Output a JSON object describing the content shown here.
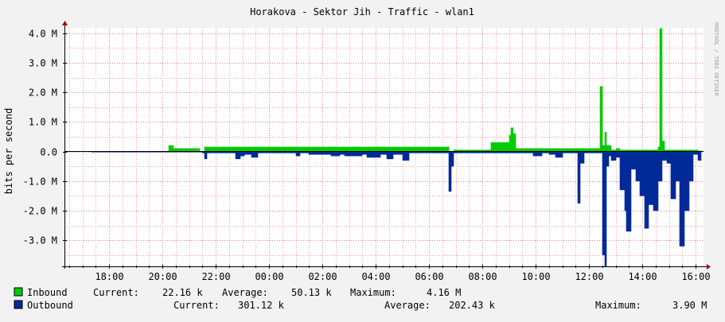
{
  "chart_data": {
    "type": "area",
    "title": "Horakova - Sektor Jih - Traffic - wlan1",
    "ylabel": "bits per second",
    "watermark": "RRDTOOL / TOBI OETIKER",
    "x_unit": "hour",
    "xlim": [
      16.4,
      16.1
    ],
    "ylim": [
      -3.9,
      4.25
    ],
    "y_ticks": [
      {
        "value": 4,
        "label": "4.0 M"
      },
      {
        "value": 3,
        "label": "3.0 M"
      },
      {
        "value": 2,
        "label": "2.0 M"
      },
      {
        "value": 1,
        "label": "1.0 M"
      },
      {
        "value": 0,
        "label": "0.0"
      },
      {
        "value": -1,
        "label": "-1.0 M"
      },
      {
        "value": -2,
        "label": "-2.0 M"
      },
      {
        "value": -3,
        "label": "-3.0 M"
      }
    ],
    "x_ticks": [
      "18:00",
      "20:00",
      "22:00",
      "00:00",
      "02:00",
      "04:00",
      "06:00",
      "08:00",
      "10:00",
      "12:00",
      "14:00",
      "16:00"
    ],
    "grid": true,
    "colors": {
      "inbound": "#00cc00",
      "outbound": "#002a97",
      "grid": "#ff9999",
      "axis": "#000000",
      "background": "#ffffff"
    },
    "series": [
      {
        "name": "Inbound",
        "color": "#00cc00",
        "x": [
          "20:05",
          "20:15",
          "20:25",
          "21:25",
          "21:35",
          "06:45",
          "06:55",
          "08:20",
          "08:30",
          "08:40",
          "09:00",
          "09:05",
          "09:10",
          "09:15",
          "12:20",
          "12:25",
          "12:30",
          "12:35",
          "12:40",
          "12:50",
          "13:00",
          "13:10",
          "13:20",
          "13:30",
          "13:40",
          "14:00",
          "14:20",
          "14:35",
          "14:40",
          "14:45",
          "14:50",
          "15:00",
          "15:20",
          "15:40",
          "15:55",
          "16:05"
        ],
        "values": [
          0.0,
          0.2,
          0.1,
          0.0,
          0.15,
          0.0,
          0.05,
          0.3,
          0.3,
          0.3,
          0.55,
          0.8,
          0.6,
          0.1,
          0.1,
          2.2,
          0.2,
          0.65,
          0.2,
          0.05,
          0.1,
          0.05,
          0.05,
          0.05,
          0.05,
          0.05,
          0.05,
          0.15,
          4.16,
          0.35,
          0.05,
          0.05,
          0.05,
          0.05,
          0.05,
          0.02
        ]
      },
      {
        "name": "Outbound",
        "color": "#002a97",
        "x": [
          "17:20",
          "17:30",
          "19:40",
          "21:30",
          "21:35",
          "21:40",
          "22:30",
          "22:45",
          "22:55",
          "23:05",
          "23:20",
          "23:35",
          "01:00",
          "01:10",
          "01:30",
          "01:50",
          "02:20",
          "02:40",
          "02:50",
          "03:30",
          "03:40",
          "04:10",
          "04:25",
          "04:40",
          "05:00",
          "05:15",
          "06:45",
          "06:50",
          "06:55",
          "09:55",
          "10:15",
          "10:30",
          "10:45",
          "11:00",
          "11:35",
          "11:40",
          "11:50",
          "12:30",
          "12:35",
          "12:40",
          "12:45",
          "12:50",
          "13:00",
          "13:10",
          "13:20",
          "13:25",
          "13:35",
          "13:45",
          "13:55",
          "14:05",
          "14:15",
          "14:25",
          "14:35",
          "14:45",
          "14:55",
          "15:05",
          "15:15",
          "15:25",
          "15:35",
          "15:45",
          "15:55",
          "16:05"
        ],
        "values": [
          -0.02,
          -0.02,
          -0.02,
          -0.05,
          -0.25,
          -0.05,
          -0.05,
          -0.25,
          -0.15,
          -0.1,
          -0.2,
          -0.05,
          -0.15,
          -0.05,
          -0.1,
          -0.1,
          -0.15,
          -0.1,
          -0.15,
          -0.1,
          -0.2,
          -0.1,
          -0.25,
          -0.1,
          -0.3,
          -0.05,
          -1.35,
          -0.5,
          -0.05,
          -0.15,
          -0.05,
          -0.1,
          -0.2,
          -0.05,
          -1.75,
          -0.4,
          -0.05,
          -3.5,
          -3.9,
          -0.5,
          -0.15,
          -0.3,
          -0.2,
          -1.3,
          -2.0,
          -2.7,
          -0.6,
          -1.0,
          -1.5,
          -2.6,
          -1.8,
          -2.0,
          -1.0,
          -0.3,
          -0.4,
          -1.6,
          -1.0,
          -3.2,
          -2.0,
          -1.0,
          -0.1,
          -0.3
        ]
      }
    ],
    "legend": [
      {
        "label": "Inbound",
        "color": "#00cc00",
        "current_label": "Current:",
        "current": "22.16 k",
        "average_label": "Average:",
        "average": "50.13 k",
        "maximum_label": "Maximum:",
        "maximum": "4.16 M"
      },
      {
        "label": "Outbound",
        "color": "#002a97",
        "current_label": "Current:",
        "current": "301.12 k",
        "average_label": "Average:",
        "average": "202.43 k",
        "maximum_label": "Maximum:",
        "maximum": "3.90 M"
      }
    ]
  }
}
